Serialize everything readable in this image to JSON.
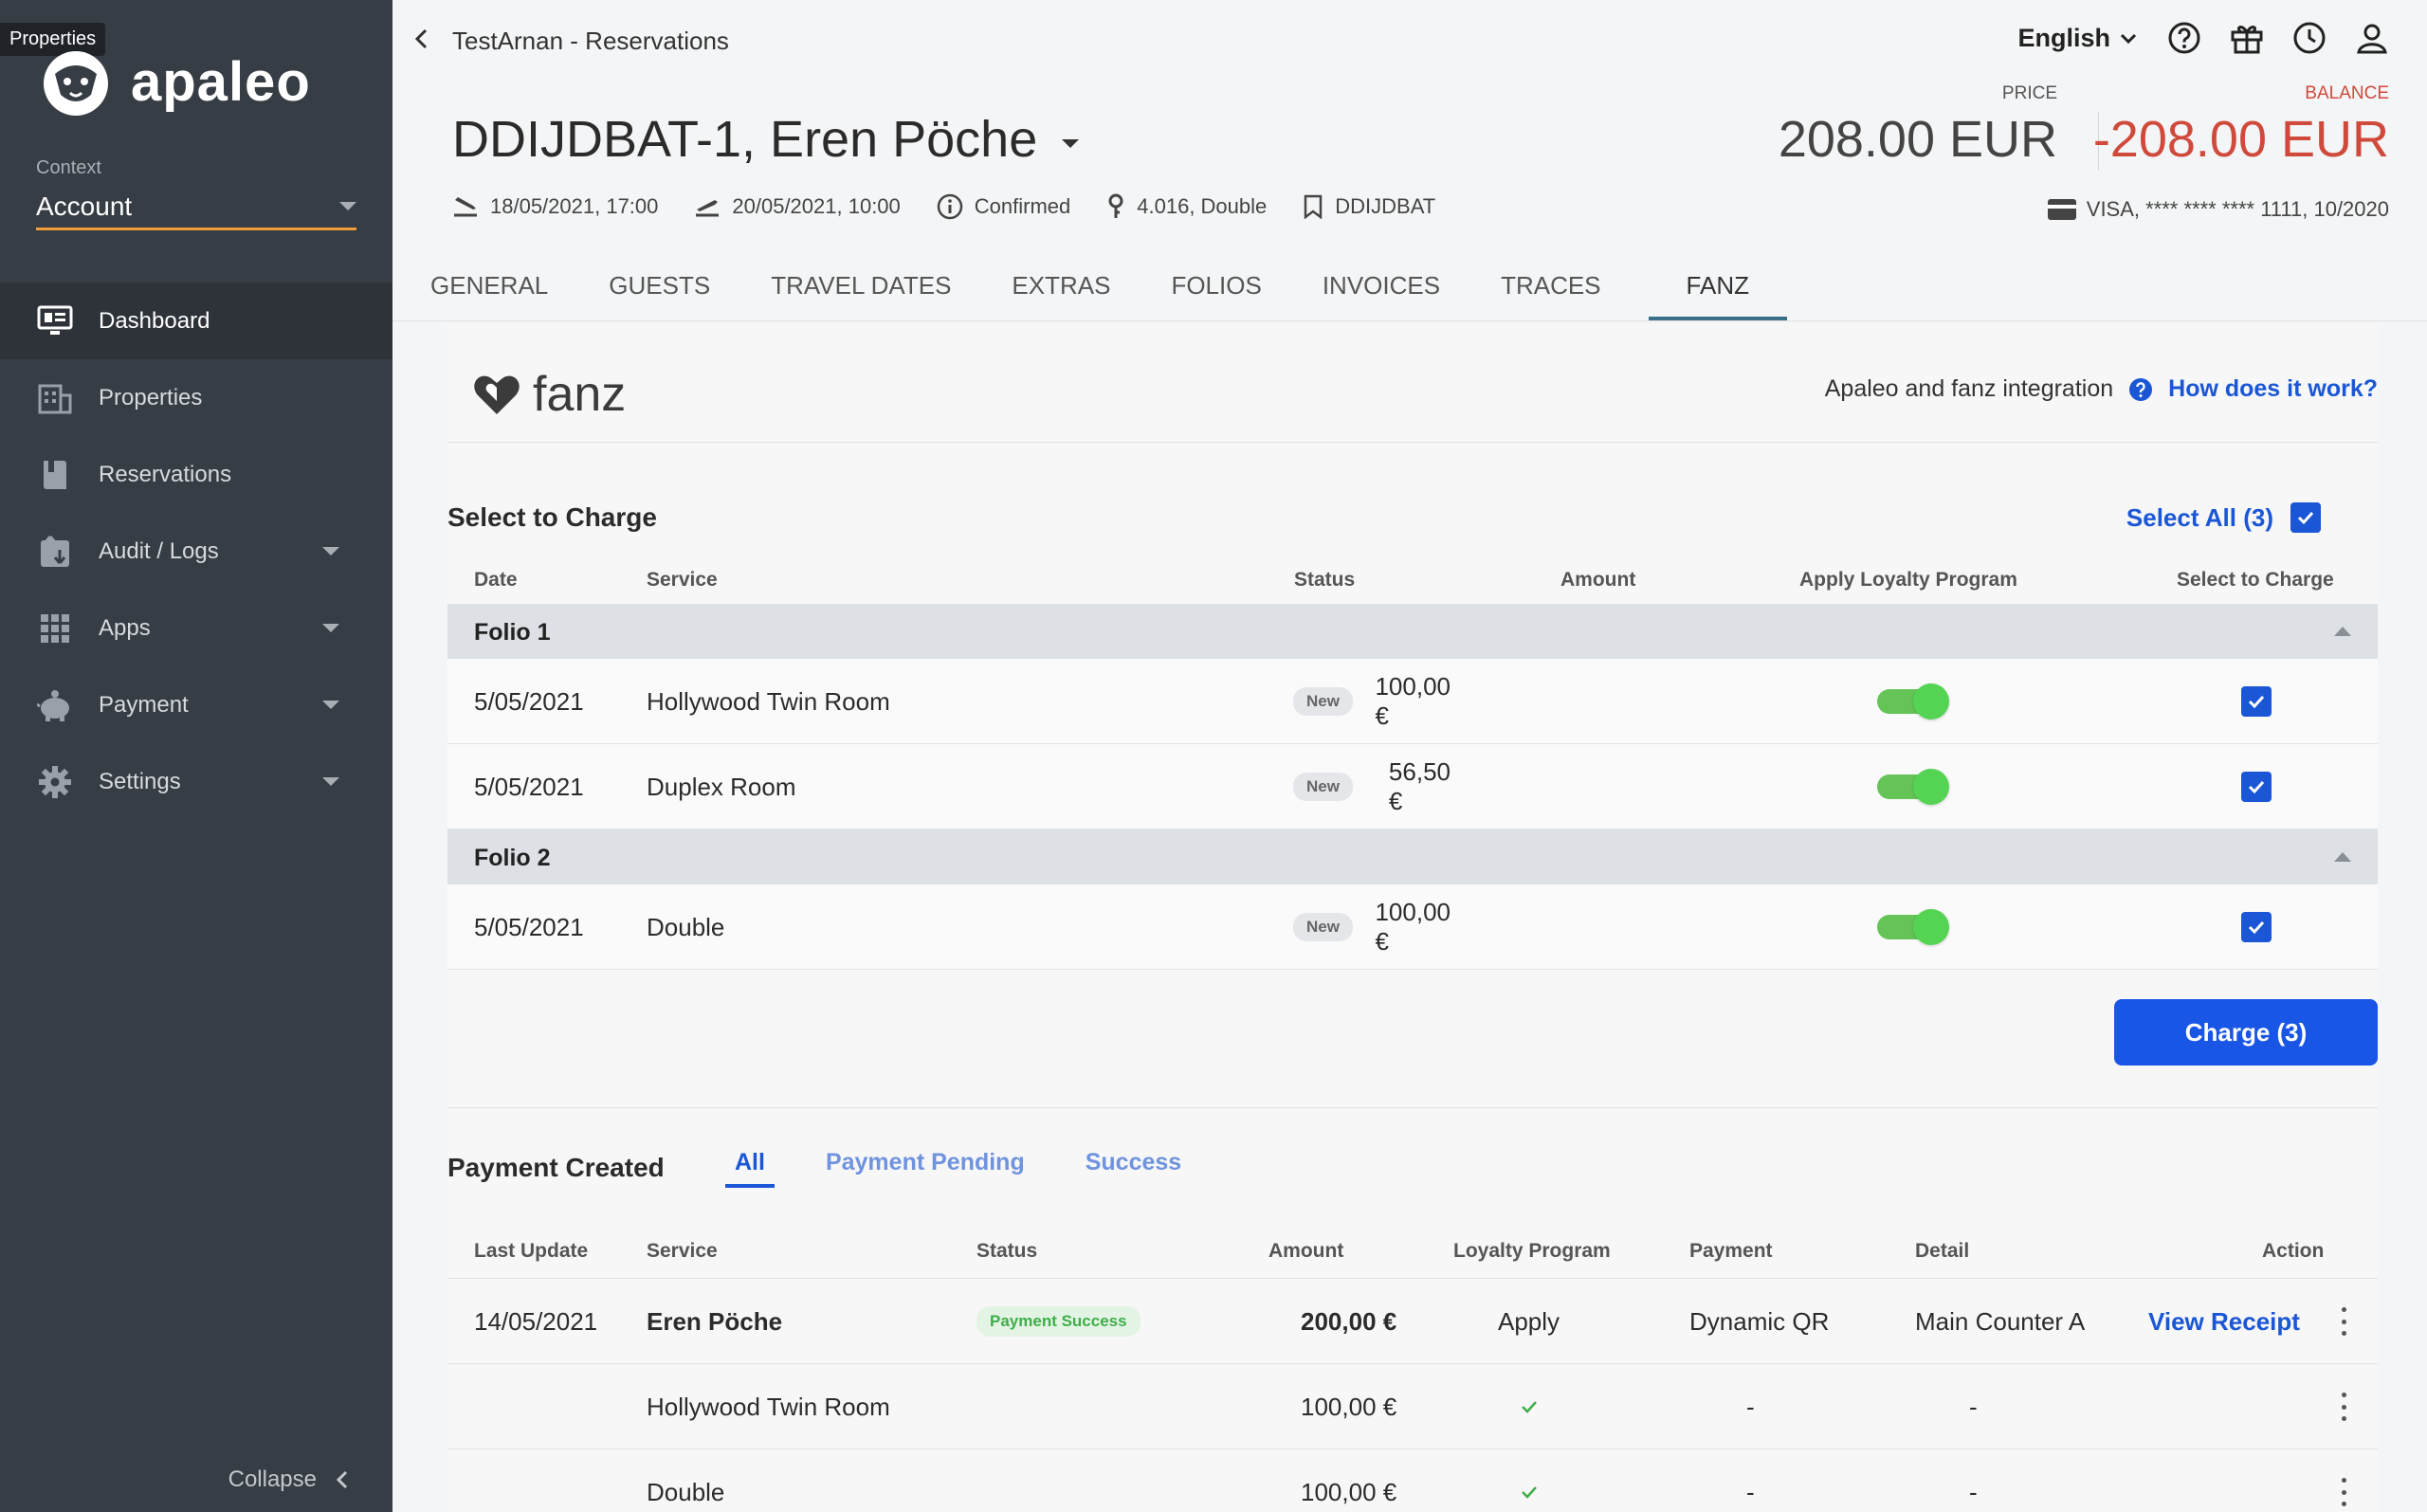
{
  "sidebar": {
    "tooltip": "Properties",
    "logo_text": "apaleo",
    "context_label": "Context",
    "context_value": "Account",
    "items": [
      {
        "label": "Dashboard"
      },
      {
        "label": "Properties"
      },
      {
        "label": "Reservations"
      },
      {
        "label": "Audit / Logs"
      },
      {
        "label": "Apps"
      },
      {
        "label": "Payment"
      },
      {
        "label": "Settings"
      }
    ],
    "collapse_label": "Collapse"
  },
  "header": {
    "breadcrumb": "TestArnan - Reservations",
    "language": "English",
    "title": "DDIJDBAT-1, Eren Pöche",
    "price_label": "PRICE",
    "price_value": "208.00 EUR",
    "balance_label": "BALANCE",
    "balance_value": "-208.00 EUR",
    "arrival": "18/05/2021, 17:00",
    "departure": "20/05/2021, 10:00",
    "status": "Confirmed",
    "unit": "4.016, Double",
    "booking": "DDIJDBAT",
    "card": "VISA, **** **** **** 1111, 10/2020"
  },
  "tabs": [
    "GENERAL",
    "GUESTS",
    "TRAVEL DATES",
    "EXTRAS",
    "FOLIOS",
    "INVOICES",
    "TRACES",
    "FANZ"
  ],
  "fanz": {
    "logo_text": "fanz",
    "integration_text": "Apaleo and fanz integration",
    "how_link": "How does it work?"
  },
  "charge": {
    "title": "Select to Charge",
    "select_all": "Select All (3)",
    "columns": {
      "date": "Date",
      "service": "Service",
      "status": "Status",
      "amount": "Amount",
      "loyalty": "Apply Loyalty Program",
      "select": "Select to Charge"
    },
    "folio1": "Folio 1",
    "folio2": "Folio 2",
    "rows": [
      {
        "date": "5/05/2021",
        "service": "Hollywood Twin Room",
        "status": "New",
        "amount": "100,00 €"
      },
      {
        "date": "5/05/2021",
        "service": "Duplex Room",
        "status": "New",
        "amount": "56,50 €"
      },
      {
        "date": "5/05/2021",
        "service": "Double",
        "status": "New",
        "amount": "100,00 €"
      }
    ],
    "button": "Charge (3)"
  },
  "payments": {
    "title": "Payment Created",
    "tabs": [
      "All",
      "Payment Pending",
      "Success"
    ],
    "columns": {
      "last_update": "Last Update",
      "service": "Service",
      "status": "Status",
      "amount": "Amount",
      "loyalty": "Loyalty Program",
      "payment": "Payment",
      "detail": "Detail",
      "action": "Action"
    },
    "main_row": {
      "date": "14/05/2021",
      "service": "Eren Pöche",
      "status": "Payment Success",
      "amount": "200,00 €",
      "loyalty": "Apply",
      "payment": "Dynamic QR",
      "detail": "Main Counter A",
      "action": "View Receipt"
    },
    "sub_rows": [
      {
        "service": "Hollywood Twin Room",
        "amount": "100,00 €",
        "payment": "-",
        "detail": "-"
      },
      {
        "service": "Double",
        "amount": "100,00 €",
        "payment": "-",
        "detail": "-"
      }
    ]
  }
}
